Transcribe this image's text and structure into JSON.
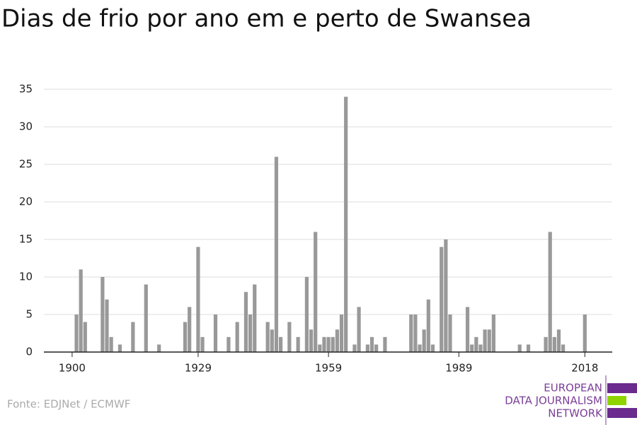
{
  "chart_data": {
    "type": "bar",
    "title": "Dias de frio por ano em e perto de Swansea",
    "source": "Fonte: EDJNet / ECMWF",
    "logo": [
      "EUROPEAN",
      "DATA JOURNALISM",
      "NETWORK"
    ],
    "color": "#999999",
    "x": [
      1901,
      1902,
      1903,
      1907,
      1908,
      1909,
      1911,
      1914,
      1917,
      1920,
      1926,
      1927,
      1929,
      1930,
      1933,
      1936,
      1938,
      1940,
      1941,
      1942,
      1945,
      1946,
      1947,
      1948,
      1950,
      1952,
      1954,
      1955,
      1956,
      1957,
      1958,
      1959,
      1960,
      1961,
      1962,
      1963,
      1965,
      1966,
      1968,
      1969,
      1970,
      1972,
      1978,
      1979,
      1980,
      1981,
      1982,
      1983,
      1985,
      1986,
      1987,
      1991,
      1992,
      1993,
      1994,
      1995,
      1996,
      1997,
      2003,
      2005,
      2009,
      2010,
      2011,
      2012,
      2013,
      2018
    ],
    "values": [
      5,
      11,
      4,
      10,
      7,
      2,
      1,
      4,
      9,
      1,
      4,
      6,
      14,
      2,
      5,
      2,
      4,
      8,
      5,
      9,
      4,
      3,
      26,
      2,
      4,
      2,
      10,
      3,
      16,
      1,
      2,
      2,
      2,
      3,
      5,
      34,
      1,
      6,
      1,
      2,
      1,
      2,
      5,
      5,
      1,
      3,
      7,
      1,
      14,
      15,
      5,
      6,
      1,
      2,
      1,
      3,
      3,
      5,
      1,
      1,
      2,
      16,
      2,
      3,
      1,
      5
    ],
    "xlim": [
      1893.5,
      2024.3
    ],
    "xticks": [
      1900,
      1929,
      1959,
      1989,
      2018
    ],
    "ylim": [
      0,
      35
    ],
    "yticks": [
      0,
      5,
      10,
      15,
      20,
      25,
      30,
      35
    ],
    "grid": true
  }
}
